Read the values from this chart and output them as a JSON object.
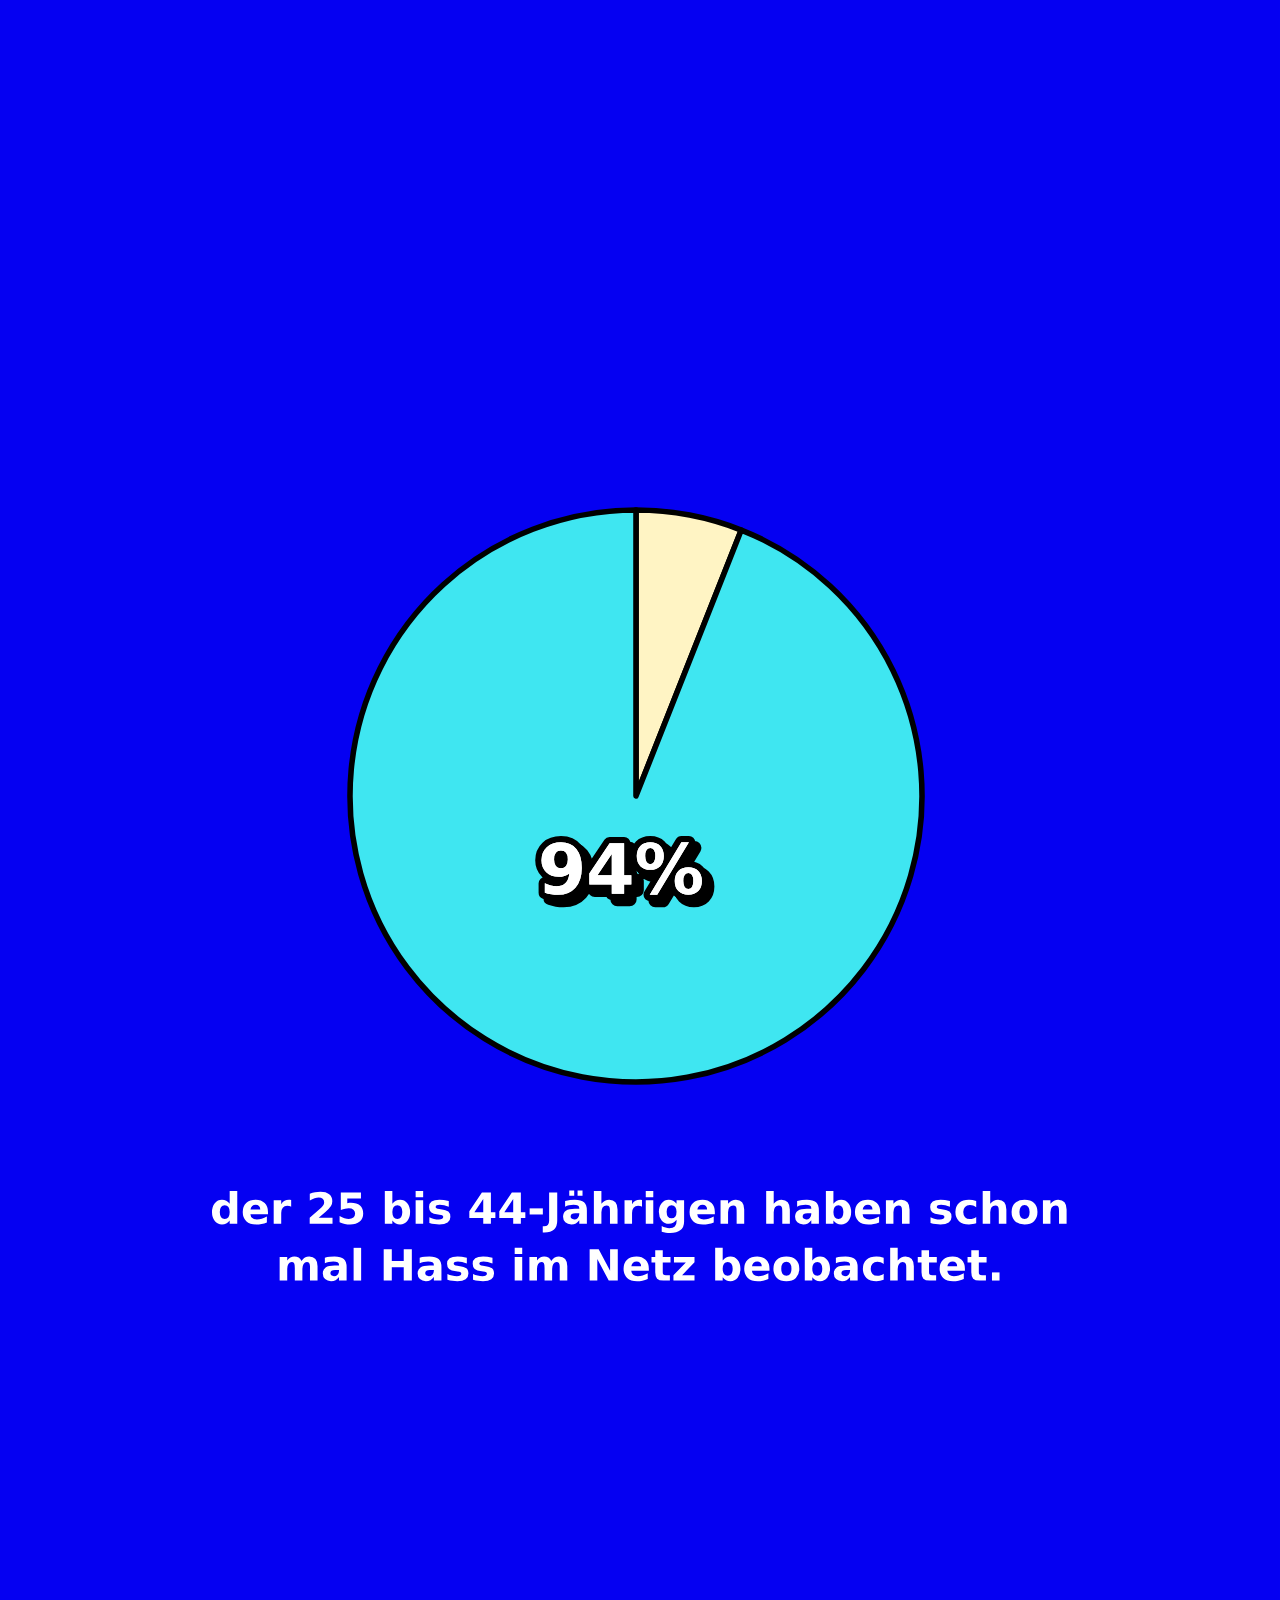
{
  "chart_data": {
    "type": "pie",
    "categories": [
      null,
      null
    ],
    "values": [
      6,
      94
    ],
    "colors": [
      "#fff4c4",
      "#3fe6f1"
    ],
    "value_labels": [
      null,
      "94%"
    ],
    "annotations": [
      "der 25 bis 44-Jährigen haben schon mal Hass im Netz beobachtet."
    ]
  }
}
